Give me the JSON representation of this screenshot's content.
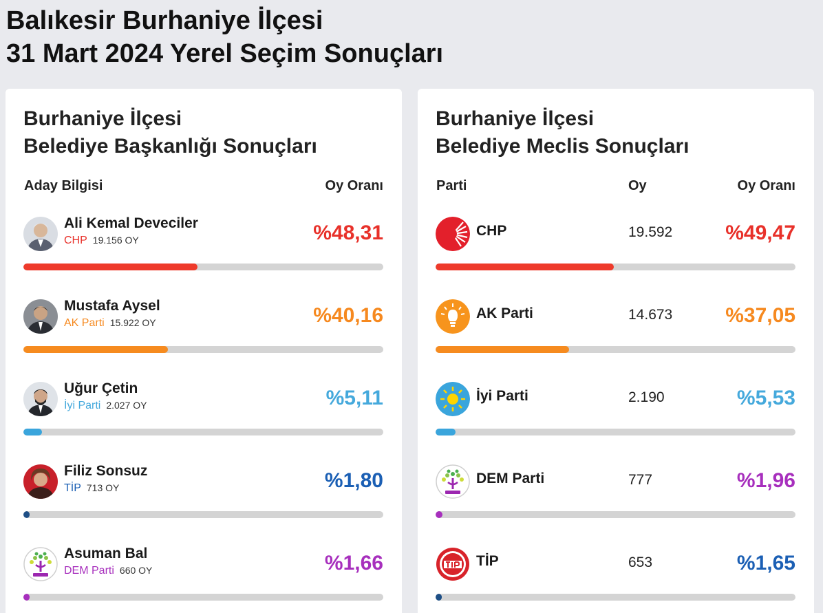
{
  "page": {
    "title_line1": "Balıkesir Burhaniye İlçesi",
    "title_line2": "31 Mart 2024 Yerel Seçim Sonuçları"
  },
  "mayor": {
    "title_line1": "Burhaniye İlçesi",
    "title_line2": "Belediye Başkanlığı Sonuçları",
    "col_candidate": "Aday Bilgisi",
    "col_rate": "Oy Oranı",
    "rows": [
      {
        "name": "Ali Kemal Deveciler",
        "party": "CHP",
        "votes": "19.156 OY",
        "pct": "%48,31",
        "share": 48.31,
        "color": "#e8312a",
        "bar_color": "#ee3a2b",
        "icon": "candidate-photo"
      },
      {
        "name": "Mustafa Aysel",
        "party": "AK Parti",
        "votes": "15.922 OY",
        "pct": "%40,16",
        "share": 40.16,
        "color": "#f6891f",
        "bar_color": "#f68b1f",
        "icon": "candidate-photo"
      },
      {
        "name": "Uğur Çetin",
        "party": "İyi Parti",
        "votes": "2.027 OY",
        "pct": "%5,11",
        "share": 5.11,
        "color": "#45a9dc",
        "bar_color": "#3aa5dc",
        "icon": "candidate-photo"
      },
      {
        "name": "Filiz Sonsuz",
        "party": "TİP",
        "votes": "713 OY",
        "pct": "%1,80",
        "share": 1.8,
        "color": "#1b5fb4",
        "bar_color": "#1e4f86",
        "icon": "candidate-photo"
      },
      {
        "name": "Asuman Bal",
        "party": "DEM Parti",
        "votes": "660 OY",
        "pct": "%1,66",
        "share": 1.66,
        "color": "#a72fbd",
        "bar_color": "#a72fbd",
        "icon": "dem-parti-logo"
      }
    ]
  },
  "council": {
    "title_line1": "Burhaniye İlçesi",
    "title_line2": "Belediye Meclis Sonuçları",
    "col_party": "Parti",
    "col_votes": "Oy",
    "col_rate": "Oy Oranı",
    "rows": [
      {
        "party": "CHP",
        "votes": "19.592",
        "pct": "%49,47",
        "share": 49.47,
        "color": "#e8312a",
        "bar_color": "#ee3a2b",
        "icon": "chp-logo"
      },
      {
        "party": "AK Parti",
        "votes": "14.673",
        "pct": "%37,05",
        "share": 37.05,
        "color": "#f6891f",
        "bar_color": "#f68b1f",
        "icon": "ak-parti-logo"
      },
      {
        "party": "İyi Parti",
        "votes": "2.190",
        "pct": "%5,53",
        "share": 5.53,
        "color": "#45a9dc",
        "bar_color": "#3aa5dc",
        "icon": "iyi-parti-logo"
      },
      {
        "party": "DEM Parti",
        "votes": "777",
        "pct": "%1,96",
        "share": 1.96,
        "color": "#a72fbd",
        "bar_color": "#a72fbd",
        "icon": "dem-parti-logo"
      },
      {
        "party": "TİP",
        "votes": "653",
        "pct": "%1,65",
        "share": 1.65,
        "color": "#1b5fb4",
        "bar_color": "#1e4f86",
        "icon": "tip-logo"
      }
    ]
  }
}
